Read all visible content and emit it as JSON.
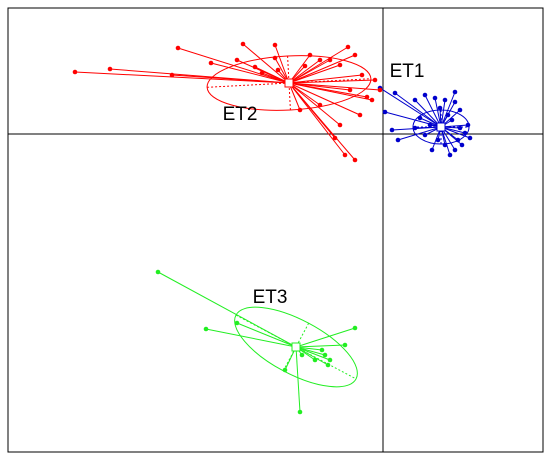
{
  "chart_data": {
    "type": "scatter",
    "grid": true,
    "xlim": [
      -375,
      160
    ],
    "ylim": [
      -318,
      126
    ],
    "xticks": [
      0
    ],
    "yticks": [
      0
    ],
    "series": [
      {
        "name": "ET1",
        "color": "#0000cc",
        "x": [
          -3,
          12,
          2,
          9,
          15,
          32,
          42,
          52,
          62,
          72,
          77,
          37,
          47,
          65,
          69,
          77,
          82,
          87,
          79,
          72,
          67,
          62,
          55,
          49,
          42,
          32,
          72,
          57,
          85,
          75
        ],
        "y": [
          46,
          41,
          22,
          4,
          -6,
          34,
          39,
          36,
          34,
          32,
          24,
          16,
          9,
          19,
          14,
          6,
          1,
          -4,
          -11,
          -16,
          -21,
          -11,
          -6,
          -16,
          -1,
          6,
          42,
          26,
          9,
          -6
        ],
        "center": [
          58,
          7
        ],
        "ellipse": {
          "rx": 28,
          "ry": 17,
          "angle": 0
        }
      },
      {
        "name": "ET2",
        "color": "#ff0000",
        "x": [
          -308,
          -273,
          -205,
          -211,
          -172,
          -146,
          -140,
          -128,
          -108,
          -108,
          -105,
          -78,
          -73,
          -63,
          -53,
          -35,
          -28,
          -43,
          -21,
          -8,
          -11,
          -23,
          -43,
          -48,
          -38,
          -28,
          -83,
          -63,
          -33,
          -16,
          -3,
          -121
        ],
        "y": [
          62,
          65,
          86,
          59,
          71,
          74,
          90,
          67,
          89,
          76,
          64,
          68,
          79,
          74,
          74,
          87,
          79,
          69,
          59,
          54,
          34,
          19,
          9,
          -4,
          -21,
          -26,
          24,
          29,
          44,
          37,
          44,
          61
        ],
        "center": [
          -94,
          51
        ],
        "ellipse": {
          "rx": 82,
          "ry": 27,
          "angle": 3
        }
      },
      {
        "name": "ET3",
        "color": "#22ee22",
        "x": [
          -225,
          -177,
          -146,
          -83,
          -98,
          -28,
          -38,
          -58,
          -55,
          -68,
          -61,
          -53,
          -81
        ],
        "y": [
          -138,
          -195,
          -189,
          -278,
          -236,
          -194,
          -211,
          -221,
          -231,
          -226,
          -216,
          -226,
          -221
        ],
        "center": [
          -87,
          -213
        ],
        "ellipse": {
          "rx": 68,
          "ry": 27,
          "angle": -28
        }
      }
    ]
  }
}
